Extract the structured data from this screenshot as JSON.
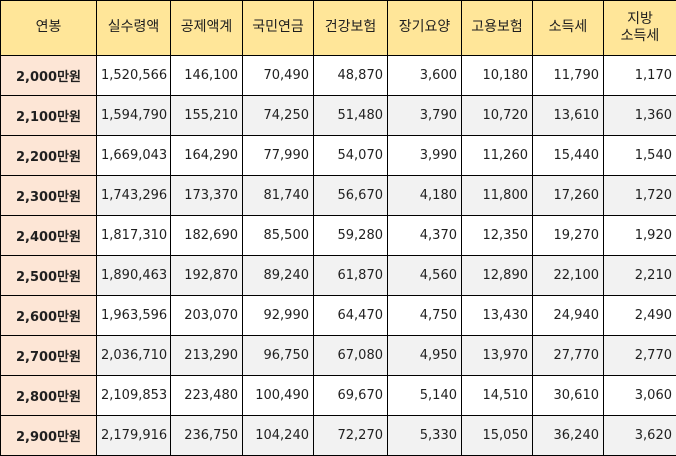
{
  "table": {
    "headers": [
      "연봉",
      "실수령액",
      "공제액계",
      "국민연금",
      "건강보험",
      "장기요양",
      "고용보험",
      "소득세",
      "지방\n소득세"
    ],
    "rows": [
      [
        "2,000만원",
        "1,520,566",
        "146,100",
        "70,490",
        "48,870",
        "3,600",
        "10,180",
        "11,790",
        "1,170"
      ],
      [
        "2,100만원",
        "1,594,790",
        "155,210",
        "74,250",
        "51,480",
        "3,790",
        "10,720",
        "13,610",
        "1,360"
      ],
      [
        "2,200만원",
        "1,669,043",
        "164,290",
        "77,990",
        "54,070",
        "3,990",
        "11,260",
        "15,440",
        "1,540"
      ],
      [
        "2,300만원",
        "1,743,296",
        "173,370",
        "81,740",
        "56,670",
        "4,180",
        "11,800",
        "17,260",
        "1,720"
      ],
      [
        "2,400만원",
        "1,817,310",
        "182,690",
        "85,500",
        "59,280",
        "4,370",
        "12,350",
        "19,270",
        "1,920"
      ],
      [
        "2,500만원",
        "1,890,463",
        "192,870",
        "89,240",
        "61,870",
        "4,560",
        "12,890",
        "22,100",
        "2,210"
      ],
      [
        "2,600만원",
        "1,963,596",
        "203,070",
        "92,990",
        "64,470",
        "4,750",
        "13,430",
        "24,940",
        "2,490"
      ],
      [
        "2,700만원",
        "2,036,710",
        "213,290",
        "96,750",
        "67,080",
        "4,950",
        "13,970",
        "27,770",
        "2,770"
      ],
      [
        "2,800만원",
        "2,109,853",
        "223,480",
        "100,490",
        "69,670",
        "5,140",
        "14,510",
        "30,610",
        "3,060"
      ],
      [
        "2,900만원",
        "2,179,916",
        "236,750",
        "104,240",
        "72,270",
        "5,330",
        "15,050",
        "36,240",
        "3,620"
      ]
    ]
  },
  "colors": {
    "header_bg": "#ffe699",
    "label_bg": "#fde6d6",
    "alt_row_bg": "#f2f2f2",
    "border": "#000000"
  }
}
